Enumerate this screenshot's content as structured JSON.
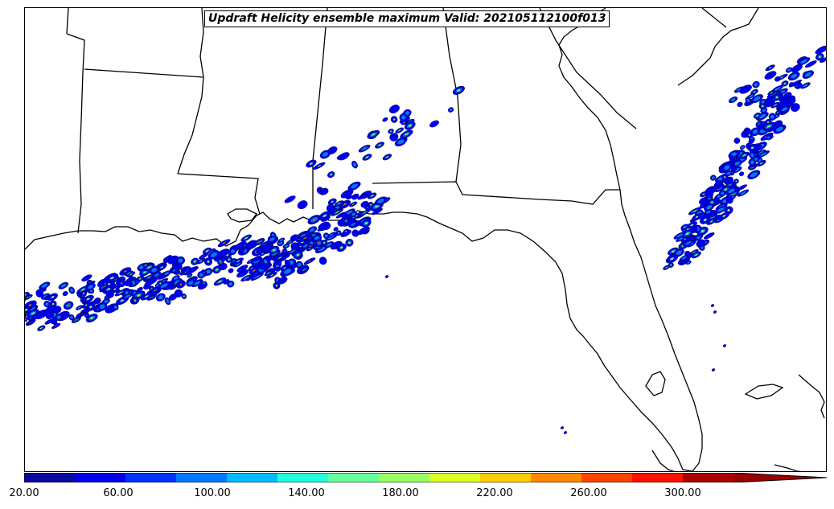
{
  "title": "Updraft Helicity ensemble maximum Valid: 202105112100f013",
  "colorbar": {
    "min": 20,
    "max": 300,
    "extend": "max",
    "tick_values": [
      20,
      60,
      100,
      140,
      180,
      220,
      260,
      300
    ],
    "tick_labels": [
      "20.00",
      "60.00",
      "100.00",
      "140.00",
      "180.00",
      "220.00",
      "260.00",
      "300.00"
    ],
    "colors": [
      "#0a0aa0",
      "#0000ee",
      "#0033ff",
      "#0077ff",
      "#00bbff",
      "#22ffdd",
      "#66ff99",
      "#99ff66",
      "#ddff22",
      "#ffcc00",
      "#ff8800",
      "#ff4400",
      "#ff1100",
      "#aa0000",
      "#990000"
    ]
  },
  "map": {
    "region": "Southeastern United States and Gulf of Mexico",
    "land_color": "#ffffff",
    "water_color": "#ffffff",
    "line_color": "#000000"
  }
}
